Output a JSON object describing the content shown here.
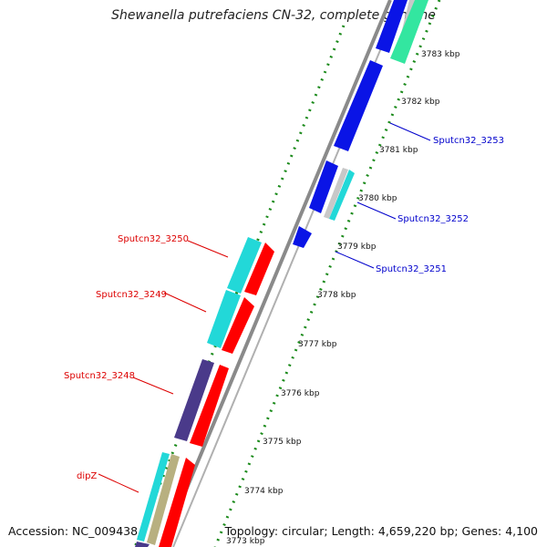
{
  "title": "Shewanella putrefaciens CN-32, complete genome",
  "footer": {
    "accession": "Accession: NC_009438",
    "summary": "Topology: circular; Length: 4,659,220 bp; Genes: 4,100"
  },
  "colors": {
    "backbone": "#8a8a8a",
    "ruler_dots": "#1a8a1a",
    "label_red": "#dd0000",
    "label_blue": "#0000cc",
    "cyan": "#22d8d8",
    "red": "#ff0000",
    "blue": "#0a14e6",
    "purple": "#4a3a8a",
    "teal_green": "#33e6a0",
    "light_gray": "#c8c8c8",
    "khaki": "#b8b080"
  },
  "ruler": {
    "unit": "kbp",
    "ticks": [
      {
        "value": 3773,
        "label": "3773 kbp"
      },
      {
        "value": 3774,
        "label": "3774 kbp"
      },
      {
        "value": 3775,
        "label": "3775 kbp"
      },
      {
        "value": 3776,
        "label": "3776 kbp"
      },
      {
        "value": 3777,
        "label": "3777 kbp"
      },
      {
        "value": 3778,
        "label": "3778 kbp"
      },
      {
        "value": 3779,
        "label": "3779 kbp"
      },
      {
        "value": 3780,
        "label": "3780 kbp"
      },
      {
        "value": 3781,
        "label": "3781 kbp"
      },
      {
        "value": 3782,
        "label": "3782 kbp"
      },
      {
        "value": 3783,
        "label": "3783 kbp"
      }
    ]
  },
  "gene_labels": [
    {
      "text": "Sputcn32_3250",
      "strand": "minus"
    },
    {
      "text": "Sputcn32_3249",
      "strand": "minus"
    },
    {
      "text": "Sputcn32_3248",
      "strand": "minus"
    },
    {
      "text": "dipZ",
      "strand": "minus"
    },
    {
      "text": "Sputcn32_3253",
      "strand": "plus"
    },
    {
      "text": "Sputcn32_3252",
      "strand": "plus"
    },
    {
      "text": "Sputcn32_3251",
      "strand": "plus"
    }
  ]
}
